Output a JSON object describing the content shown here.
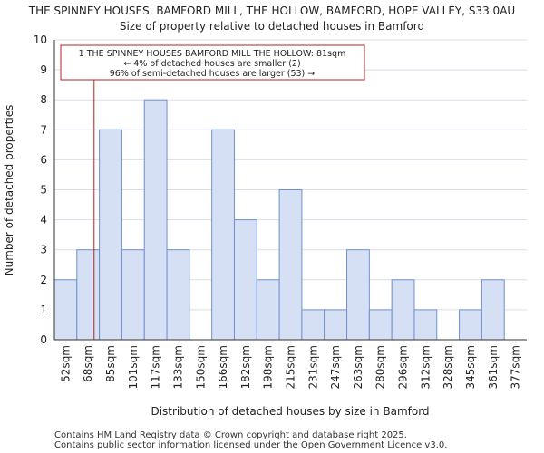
{
  "title": {
    "line1": "THE SPINNEY HOUSES, BAMFORD MILL, THE HOLLOW, BAMFORD, HOPE VALLEY, S33 0AU",
    "line2": "Size of property relative to detached houses in Bamford"
  },
  "annotation": {
    "line1": "1 THE SPINNEY HOUSES BAMFORD MILL THE HOLLOW: 81sqm",
    "line2": "← 4% of detached houses are smaller (2)",
    "line3": "96% of semi-detached houses are larger (53) →",
    "marker_value": 81
  },
  "footer": {
    "line1": "Contains HM Land Registry data © Crown copyright and database right 2025.",
    "line2": "Contains public sector information licensed under the Open Government Licence v3.0."
  },
  "colors": {
    "bar_fill": "#d6e0f5",
    "bar_edge": "#6f8fcf",
    "marker": "#b22222",
    "grid": "#d9deea"
  },
  "chart_data": {
    "type": "bar",
    "title": "Size of property relative to detached houses in Bamford",
    "xlabel": "Distribution of detached houses by size in Bamford",
    "ylabel": "Number of detached properties",
    "categories": [
      "52sqm",
      "68sqm",
      "85sqm",
      "101sqm",
      "117sqm",
      "133sqm",
      "150sqm",
      "166sqm",
      "182sqm",
      "198sqm",
      "215sqm",
      "231sqm",
      "247sqm",
      "263sqm",
      "280sqm",
      "296sqm",
      "312sqm",
      "328sqm",
      "345sqm",
      "361sqm",
      "377sqm"
    ],
    "values": [
      2,
      3,
      7,
      3,
      8,
      3,
      0,
      7,
      4,
      2,
      5,
      1,
      1,
      3,
      1,
      2,
      1,
      0,
      1,
      2,
      0
    ],
    "yticks": [
      0,
      1,
      2,
      3,
      4,
      5,
      6,
      7,
      8,
      9,
      10
    ],
    "ylim": [
      0,
      10
    ],
    "grid": true
  }
}
